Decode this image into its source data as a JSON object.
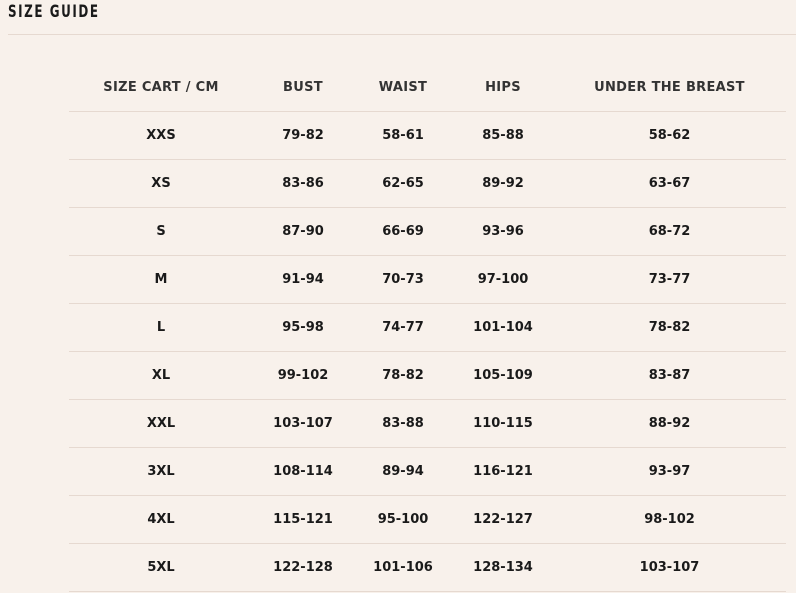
{
  "title": "SIZE GUIDE",
  "table": {
    "headers": [
      "SIZE CART / CM",
      "BUST",
      "WAIST",
      "HIPS",
      "UNDER THE BREAST"
    ],
    "rows": [
      [
        "XXS",
        "79-82",
        "58-61",
        "85-88",
        "58-62"
      ],
      [
        "XS",
        "83-86",
        "62-65",
        "89-92",
        "63-67"
      ],
      [
        "S",
        "87-90",
        "66-69",
        "93-96",
        "68-72"
      ],
      [
        "M",
        "91-94",
        "70-73",
        "97-100",
        "73-77"
      ],
      [
        "L",
        "95-98",
        "74-77",
        "101-104",
        "78-82"
      ],
      [
        "XL",
        "99-102",
        "78-82",
        "105-109",
        "83-87"
      ],
      [
        "XXL",
        "103-107",
        "83-88",
        "110-115",
        "88-92"
      ],
      [
        "3XL",
        "108-114",
        "89-94",
        "116-121",
        "93-97"
      ],
      [
        "4XL",
        "115-121",
        "95-100",
        "122-127",
        "98-102"
      ],
      [
        "5XL",
        "122-128",
        "101-106",
        "128-134",
        "103-107"
      ]
    ]
  }
}
